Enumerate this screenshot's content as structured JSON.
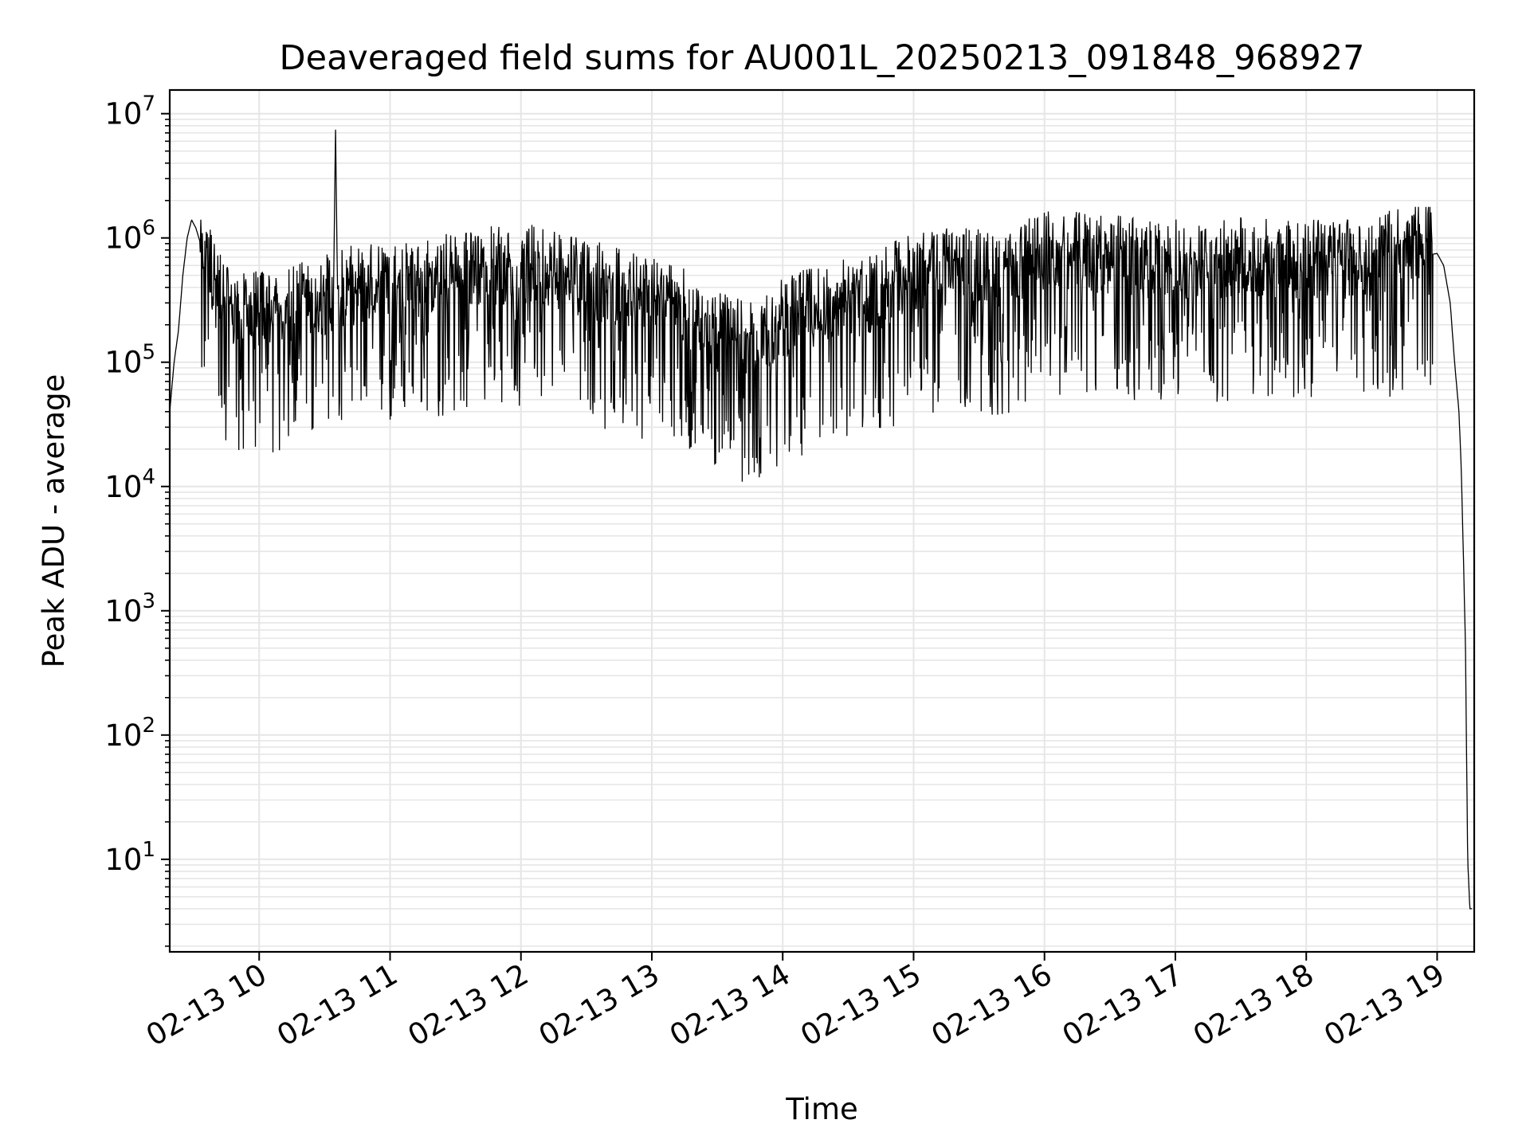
{
  "chart_data": {
    "type": "line",
    "title": "Deaveraged field sums for AU001L_20250213_091848_968927",
    "xlabel": "Time",
    "ylabel": "Peak ADU - average",
    "x_axis_type": "datetime",
    "y_scale": "log",
    "xlim": [
      "2025-02-13T09:19:00",
      "2025-02-13T19:17:00"
    ],
    "ylim": [
      1.8,
      15500000
    ],
    "x_ticks": [
      "02-13 10",
      "02-13 11",
      "02-13 12",
      "02-13 13",
      "02-13 14",
      "02-13 15",
      "02-13 16",
      "02-13 17",
      "02-13 18",
      "02-13 19"
    ],
    "y_ticks": [
      {
        "base": "10",
        "exp": "1",
        "value": 10
      },
      {
        "base": "10",
        "exp": "2",
        "value": 100
      },
      {
        "base": "10",
        "exp": "3",
        "value": 1000
      },
      {
        "base": "10",
        "exp": "4",
        "value": 10000
      },
      {
        "base": "10",
        "exp": "5",
        "value": 100000
      },
      {
        "base": "10",
        "exp": "6",
        "value": 1000000
      },
      {
        "base": "10",
        "exp": "7",
        "value": 10000000
      }
    ],
    "grid": true,
    "line_color": "#000000",
    "grid_color": "#e6e6e6",
    "series": [
      {
        "points": [
          [
            "2025-02-13T09:19",
            40000
          ],
          [
            "2025-02-13T09:21",
            100000
          ],
          [
            "2025-02-13T09:23",
            180000
          ],
          [
            "2025-02-13T09:25",
            500000
          ],
          [
            "2025-02-13T09:27",
            1000000
          ],
          [
            "2025-02-13T09:29",
            1400000
          ],
          [
            "2025-02-13T09:31",
            1200000
          ],
          [
            "2025-02-13T09:35",
            700000
          ],
          [
            "2025-02-13T09:40",
            300000
          ],
          [
            "2025-02-13T09:50",
            180000
          ],
          [
            "2025-02-13T10:00",
            200000
          ],
          [
            "2025-02-13T10:15",
            220000
          ],
          [
            "2025-02-13T10:30",
            260000
          ],
          [
            "2025-02-13T10:34",
            280000
          ],
          [
            "2025-02-13T10:35",
            7500000
          ],
          [
            "2025-02-13T10:36",
            300000
          ],
          [
            "2025-02-13T10:50",
            320000
          ],
          [
            "2025-02-13T11:10",
            350000
          ],
          [
            "2025-02-13T11:30",
            420000
          ],
          [
            "2025-02-13T11:50",
            460000
          ],
          [
            "2025-02-13T12:10",
            450000
          ],
          [
            "2025-02-13T12:30",
            360000
          ],
          [
            "2025-02-13T12:50",
            280000
          ],
          [
            "2025-02-13T13:10",
            230000
          ],
          [
            "2025-02-13T13:30",
            130000
          ],
          [
            "2025-02-13T13:45",
            110000
          ],
          [
            "2025-02-13T14:00",
            170000
          ],
          [
            "2025-02-13T14:20",
            230000
          ],
          [
            "2025-02-13T14:40",
            260000
          ],
          [
            "2025-02-13T15:00",
            420000
          ],
          [
            "2025-02-13T15:20",
            460000
          ],
          [
            "2025-02-13T15:40",
            380000
          ],
          [
            "2025-02-13T16:00",
            600000
          ],
          [
            "2025-02-13T16:30",
            550000
          ],
          [
            "2025-02-13T17:00",
            500000
          ],
          [
            "2025-02-13T17:30",
            520000
          ],
          [
            "2025-02-13T18:00",
            500000
          ],
          [
            "2025-02-13T18:30",
            520000
          ],
          [
            "2025-02-13T18:50",
            700000
          ],
          [
            "2025-02-13T19:00",
            750000
          ],
          [
            "2025-02-13T19:03",
            600000
          ],
          [
            "2025-02-13T19:06",
            300000
          ],
          [
            "2025-02-13T19:08",
            100000
          ],
          [
            "2025-02-13T19:10",
            40000
          ],
          [
            "2025-02-13T19:11",
            15000
          ],
          [
            "2025-02-13T19:12",
            3000
          ],
          [
            "2025-02-13T19:13",
            500
          ],
          [
            "2025-02-13T19:14",
            10
          ],
          [
            "2025-02-13T19:15",
            4
          ],
          [
            "2025-02-13T19:16",
            4
          ]
        ]
      }
    ]
  }
}
